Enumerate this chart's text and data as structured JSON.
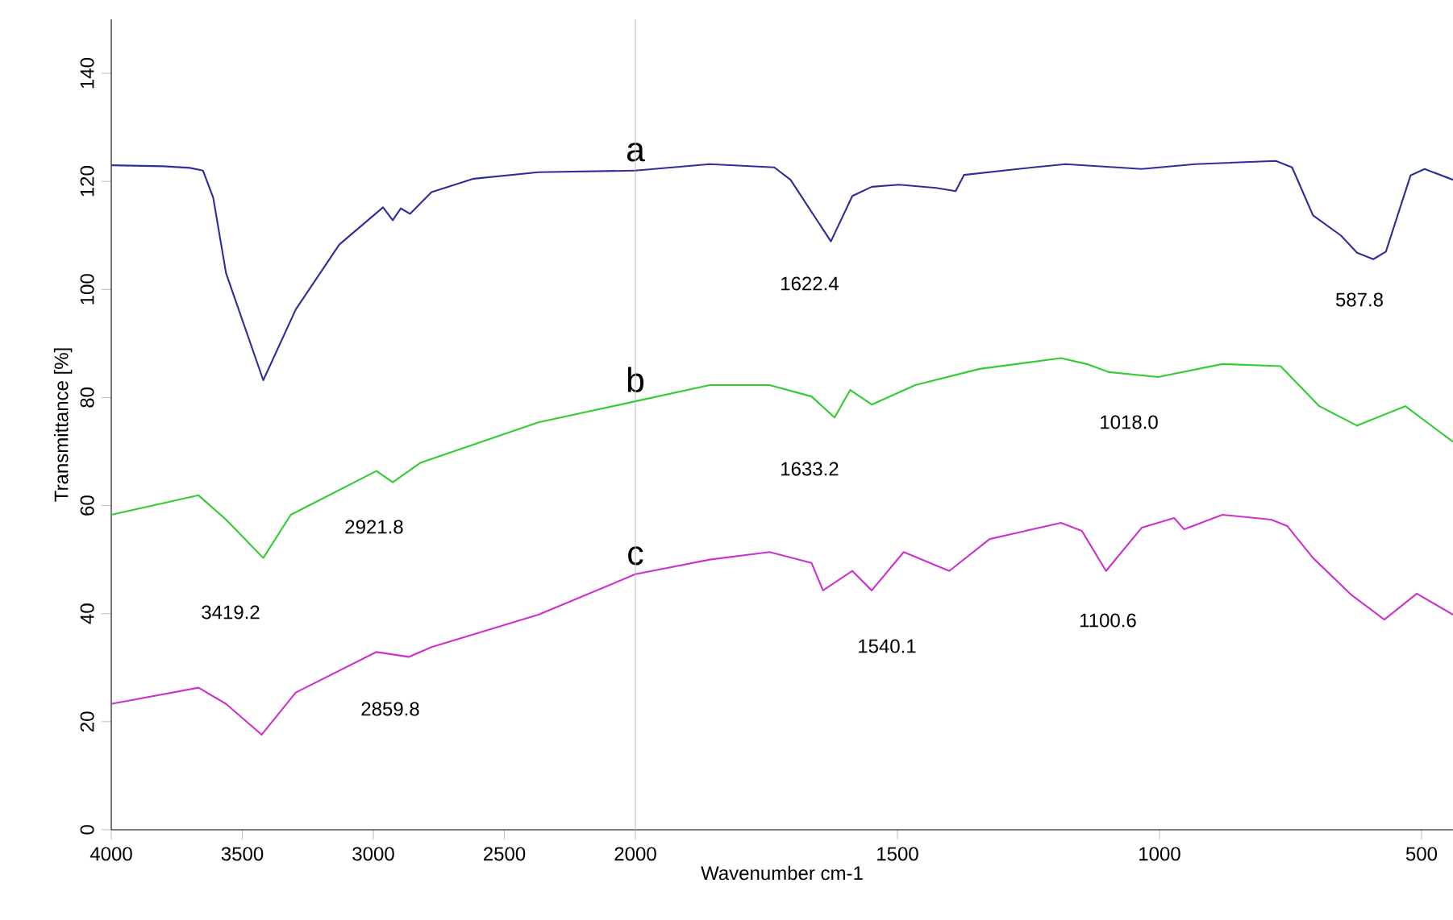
{
  "chart_data": [
    {
      "type": "line",
      "ylabel": "Transmittance [%]",
      "xlim": [
        4000,
        2000
      ],
      "xticks": [
        4000,
        3500,
        3000,
        2500,
        2000
      ],
      "ylim": [
        0,
        150
      ],
      "yticks": [
        0,
        20,
        40,
        60,
        80,
        100,
        120,
        140
      ],
      "grid": false,
      "legend": false,
      "marker": "none",
      "line_style": "solid",
      "series": [
        {
          "name": "a",
          "color": "#2e2e9c",
          "x": [
            4000,
            3800,
            3700,
            3650,
            3611,
            3562,
            3420,
            3296,
            3130,
            2963,
            2926,
            2895,
            2860,
            2778,
            2617,
            2370,
            2000
          ],
          "values": [
            123,
            122.8,
            122.5,
            122,
            117,
            103,
            83.2,
            96.3,
            108.3,
            115.2,
            112.8,
            115,
            114,
            118,
            120.5,
            121.7,
            122
          ]
        },
        {
          "name": "b",
          "color": "#33cc33",
          "x": [
            4000,
            3667,
            3562,
            3420,
            3315,
            2988,
            2926,
            2821,
            2370,
            2000
          ],
          "values": [
            58.3,
            61.9,
            57.4,
            50.3,
            58.3,
            66.4,
            64.3,
            67.9,
            75.4,
            79.3
          ]
        },
        {
          "name": "c",
          "color": "#cc33cc",
          "x": [
            4000,
            3667,
            3562,
            3426,
            3296,
            2988,
            2864,
            2778,
            2370,
            2000
          ],
          "values": [
            23.3,
            26.3,
            23.3,
            17.6,
            25.4,
            32.9,
            32,
            33.8,
            39.8,
            47.3
          ]
        }
      ],
      "annotations": [
        "2921.8",
        "3419.2",
        "2859.8"
      ]
    },
    {
      "type": "line",
      "xlabel": "Wavenumber cm-1",
      "xlim": [
        2000,
        440
      ],
      "xticks": [
        1500,
        1000,
        500
      ],
      "ylim": [
        0,
        150
      ],
      "yticks": [
        0,
        20,
        40,
        60,
        80,
        100,
        120,
        140
      ],
      "tick_labels": "x",
      "grid": false,
      "legend": false,
      "marker": "none",
      "line_style": "solid",
      "series": [
        {
          "color": "#2e2e9c",
          "x": [
            2000,
            1858,
            1735,
            1704,
            1627,
            1586,
            1549,
            1497,
            1426,
            1389,
            1373,
            1241,
            1179,
            1034,
            932,
            778,
            747,
            707,
            654,
            623,
            592,
            568,
            521,
            494,
            440
          ],
          "values": [
            122,
            123.2,
            122.6,
            120.3,
            108.9,
            117.3,
            119,
            119.4,
            118.8,
            118.2,
            121.2,
            122.6,
            123.2,
            122.3,
            123.2,
            123.8,
            122.6,
            113.7,
            110,
            106.8,
            105.6,
            107,
            121.1,
            122.3,
            120.3
          ]
        },
        {
          "color": "#33cc33",
          "x": [
            2000,
            1858,
            1744,
            1664,
            1620,
            1590,
            1549,
            1466,
            1343,
            1188,
            1139,
            1096,
            1003,
            880,
            769,
            695,
            623,
            531,
            440
          ],
          "values": [
            79.3,
            82.3,
            82.3,
            80.2,
            76.3,
            81.4,
            78.7,
            82.3,
            85.3,
            87.3,
            86.2,
            84.7,
            83.8,
            86.2,
            85.8,
            78.4,
            74.8,
            78.4,
            71.8
          ]
        },
        {
          "color": "#cc33cc",
          "x": [
            2000,
            1858,
            1744,
            1664,
            1642,
            1586,
            1549,
            1488,
            1401,
            1324,
            1188,
            1148,
            1102,
            1034,
            972,
            953,
            880,
            787,
            756,
            707,
            633,
            571,
            509,
            440
          ],
          "values": [
            47.3,
            50,
            51.4,
            49.4,
            44.3,
            47.9,
            44.3,
            51.4,
            47.9,
            53.8,
            56.8,
            55.3,
            47.9,
            55.9,
            57.7,
            55.6,
            58.3,
            57.4,
            56.2,
            50.3,
            43.4,
            38.9,
            43.7,
            39.8
          ]
        }
      ],
      "annotations": [
        "1622.4",
        "587.8",
        "1633.2",
        "1018.0",
        "1540.1",
        "1100.6"
      ]
    }
  ]
}
